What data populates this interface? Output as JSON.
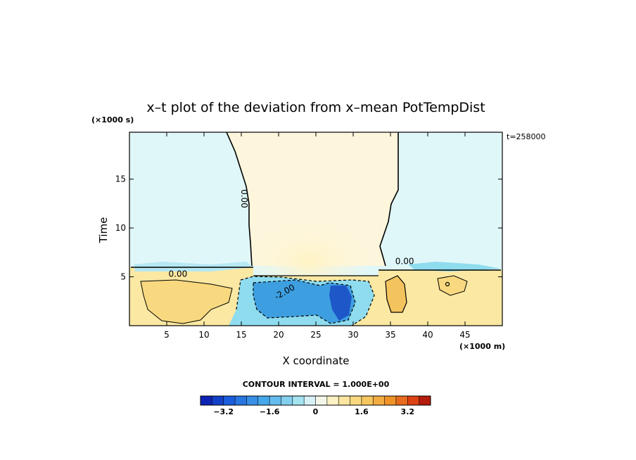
{
  "chart_data": {
    "type": "heatmap",
    "title": "x–t plot of the deviation from x–mean PotTempDist",
    "xlabel": "X coordinate",
    "ylabel": "Time",
    "x_unit": "(×1000 m)",
    "y_unit": "(×1000 s)",
    "time_stamp": "t=258000",
    "xlim": [
      0,
      50
    ],
    "ylim": [
      0,
      19.8
    ],
    "x_ticks": [
      5,
      10,
      15,
      20,
      25,
      30,
      35,
      40,
      45
    ],
    "y_ticks": [
      5,
      10,
      15
    ],
    "contour_interval": "CONTOUR INTERVAL = 1.000E+00",
    "contour_labels": [
      {
        "text": "0.00",
        "x": 15.0,
        "y": 13.0,
        "rotate": 90
      },
      {
        "text": "0.00",
        "x": 6.5,
        "y": 5.0,
        "rotate": 0
      },
      {
        "text": "0.00",
        "x": 36.9,
        "y": 6.3,
        "rotate": 0
      },
      {
        "text": "-2.00",
        "x": 21.0,
        "y": 3.2,
        "rotate": -30
      }
    ],
    "colorbar": {
      "min": -4.0,
      "max": 4.0,
      "step": 0.4,
      "tick_values": [
        -3.2,
        -1.6,
        0,
        1.6,
        3.2
      ],
      "tick_labels": [
        "−3.2",
        "−1.6",
        "0",
        "1.6",
        "3.2"
      ]
    }
  }
}
